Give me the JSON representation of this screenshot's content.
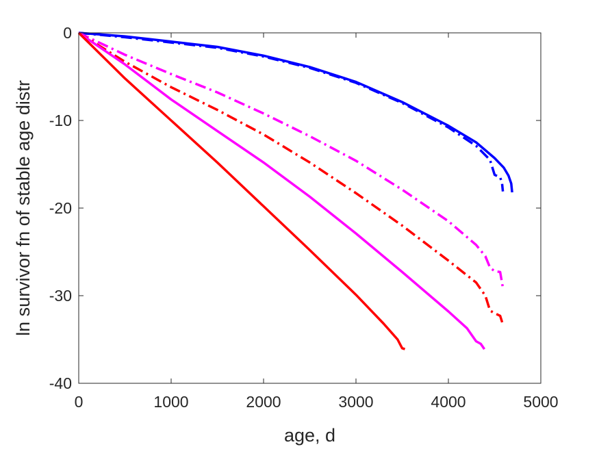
{
  "chart_data": {
    "type": "line",
    "xlabel": "age, d",
    "ylabel": "ln survivor fn of stable age distr",
    "xlim": [
      0,
      5000
    ],
    "ylim": [
      -40,
      0
    ],
    "xticks": [
      0,
      1000,
      2000,
      3000,
      4000,
      5000
    ],
    "yticks": [
      0,
      -10,
      -20,
      -30,
      -40
    ],
    "xtick_labels": [
      "0",
      "1000",
      "2000",
      "3000",
      "4000",
      "5000"
    ],
    "ytick_labels": [
      "0",
      "-10",
      "-20",
      "-30",
      "-40"
    ],
    "grid": false,
    "box": true,
    "series": [
      {
        "color": "#0000ff",
        "style": "solid",
        "points": [
          [
            0,
            0
          ],
          [
            500,
            -0.4
          ],
          [
            1000,
            -1.0
          ],
          [
            1500,
            -1.6
          ],
          [
            2000,
            -2.6
          ],
          [
            2500,
            -3.9
          ],
          [
            3000,
            -5.6
          ],
          [
            3500,
            -7.9
          ],
          [
            4000,
            -10.6
          ],
          [
            4300,
            -12.5
          ],
          [
            4500,
            -14.3
          ],
          [
            4600,
            -15.4
          ],
          [
            4650,
            -16.3
          ],
          [
            4680,
            -17.2
          ],
          [
            4690,
            -18.2
          ]
        ]
      },
      {
        "color": "#0000ff",
        "style": "dashdot",
        "points": [
          [
            0,
            0
          ],
          [
            500,
            -0.5
          ],
          [
            1000,
            -1.1
          ],
          [
            1500,
            -1.7
          ],
          [
            2000,
            -2.7
          ],
          [
            2500,
            -4.0
          ],
          [
            3000,
            -5.7
          ],
          [
            3500,
            -8.0
          ],
          [
            4000,
            -10.8
          ],
          [
            4300,
            -12.9
          ],
          [
            4450,
            -14.5
          ],
          [
            4500,
            -16.2
          ],
          [
            4560,
            -16.5
          ],
          [
            4580,
            -17.1
          ],
          [
            4590,
            -18.1
          ]
        ]
      },
      {
        "color": "#ff00ff",
        "style": "dashdot",
        "points": [
          [
            0,
            0
          ],
          [
            500,
            -2.5
          ],
          [
            1000,
            -4.7
          ],
          [
            1500,
            -6.8
          ],
          [
            2000,
            -9.2
          ],
          [
            2500,
            -11.8
          ],
          [
            3000,
            -14.6
          ],
          [
            3500,
            -17.9
          ],
          [
            4000,
            -21.5
          ],
          [
            4300,
            -24.2
          ],
          [
            4400,
            -25.5
          ],
          [
            4450,
            -26.8
          ],
          [
            4500,
            -27.2
          ],
          [
            4560,
            -27.3
          ],
          [
            4590,
            -29.1
          ]
        ]
      },
      {
        "color": "#ff0000",
        "style": "dashdot",
        "points": [
          [
            0,
            0
          ],
          [
            500,
            -3.3
          ],
          [
            1000,
            -6.2
          ],
          [
            1500,
            -8.8
          ],
          [
            2000,
            -11.6
          ],
          [
            2500,
            -14.8
          ],
          [
            3000,
            -18.3
          ],
          [
            3500,
            -22.0
          ],
          [
            4000,
            -26.0
          ],
          [
            4300,
            -28.5
          ],
          [
            4400,
            -30.0
          ],
          [
            4450,
            -31.7
          ],
          [
            4500,
            -32.0
          ],
          [
            4560,
            -32.3
          ],
          [
            4590,
            -33.3
          ]
        ]
      },
      {
        "color": "#ff00ff",
        "style": "solid",
        "points": [
          [
            0,
            0
          ],
          [
            500,
            -3.6
          ],
          [
            1000,
            -7.6
          ],
          [
            1500,
            -11.2
          ],
          [
            2000,
            -14.8
          ],
          [
            2500,
            -18.7
          ],
          [
            3000,
            -22.9
          ],
          [
            3500,
            -27.3
          ],
          [
            4000,
            -31.8
          ],
          [
            4200,
            -33.7
          ],
          [
            4300,
            -35.2
          ],
          [
            4350,
            -35.5
          ],
          [
            4390,
            -36.1
          ]
        ]
      },
      {
        "color": "#ff0000",
        "style": "solid",
        "points": [
          [
            0,
            0
          ],
          [
            500,
            -5.2
          ],
          [
            1000,
            -10.0
          ],
          [
            1500,
            -14.8
          ],
          [
            2000,
            -19.8
          ],
          [
            2500,
            -24.8
          ],
          [
            3000,
            -29.9
          ],
          [
            3300,
            -33.2
          ],
          [
            3400,
            -34.4
          ],
          [
            3450,
            -35.0
          ],
          [
            3480,
            -35.6
          ],
          [
            3500,
            -36.0
          ],
          [
            3530,
            -36.1
          ]
        ]
      }
    ]
  }
}
